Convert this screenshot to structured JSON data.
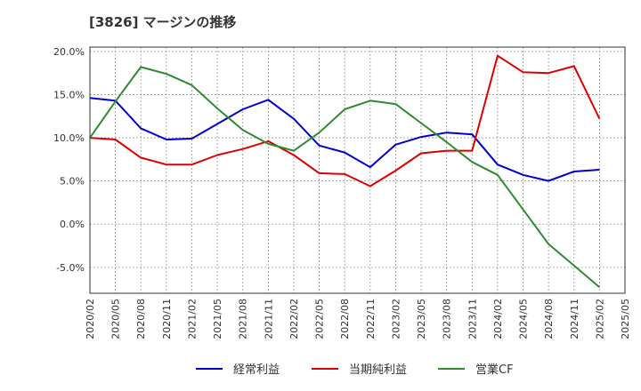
{
  "title": "[3826]  マージンの推移",
  "chart_data": {
    "type": "line",
    "title": "[3826]  マージンの推移",
    "x": [
      "2020/02",
      "2020/05",
      "2020/08",
      "2020/11",
      "2021/02",
      "2021/05",
      "2021/08",
      "2021/11",
      "2022/02",
      "2022/05",
      "2022/08",
      "2022/11",
      "2023/02",
      "2023/05",
      "2023/08",
      "2023/11",
      "2024/02",
      "2024/05",
      "2024/08",
      "2024/11",
      "2025/02",
      "2025/05"
    ],
    "y_ticks": [
      "20.0%",
      "15.0%",
      "10.0%",
      "5.0%",
      "0.0%",
      "-5.0%"
    ],
    "ylim": [
      -8,
      20.5
    ],
    "grid": true,
    "legend_position": "bottom",
    "series": [
      {
        "name": "経常利益",
        "color": "#0000cc",
        "values": [
          14.6,
          14.3,
          11.1,
          9.8,
          9.9,
          11.6,
          13.3,
          14.4,
          12.2,
          9.1,
          8.3,
          6.6,
          9.2,
          10.1,
          10.6,
          10.4,
          6.9,
          5.7,
          5.0,
          6.1,
          6.3,
          null
        ]
      },
      {
        "name": "当期純利益",
        "color": "#dd0000",
        "values": [
          10.0,
          9.8,
          7.7,
          6.9,
          6.9,
          8.0,
          8.7,
          9.6,
          8.0,
          5.9,
          5.8,
          4.4,
          6.2,
          8.2,
          8.5,
          8.5,
          19.5,
          17.6,
          17.5,
          18.3,
          12.2,
          null
        ]
      },
      {
        "name": "営業CF",
        "color": "#2e8b2e",
        "values": [
          10.0,
          14.2,
          18.2,
          17.4,
          16.1,
          13.4,
          10.9,
          9.3,
          8.5,
          10.6,
          13.3,
          14.3,
          13.9,
          11.7,
          9.5,
          7.2,
          5.7,
          1.7,
          -2.3,
          -4.8,
          -7.3,
          null
        ]
      }
    ]
  }
}
